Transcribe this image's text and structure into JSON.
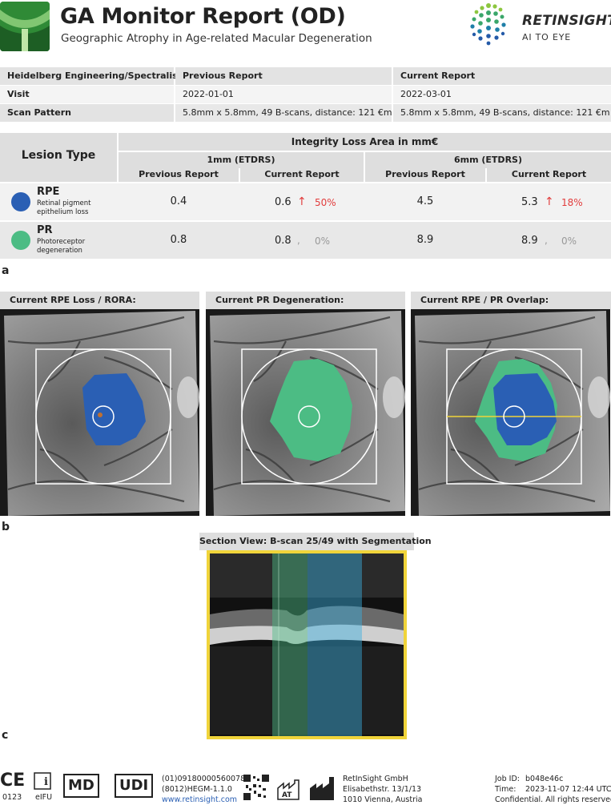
{
  "header": {
    "title": "GA Monitor Report (OD)",
    "subtitle": "Geographic Atrophy in Age-related Macular Degeneration",
    "brand_name": "RETINSIGHT",
    "brand_tagline": "AI TO EYE",
    "brand_colors": [
      "#8cc63f",
      "#3aa66a",
      "#1f7fa8",
      "#245aa8"
    ]
  },
  "info_table": {
    "device": "Heidelberg Engineering/Spectralis",
    "previous_header": "Previous Report",
    "current_header": "Current Report",
    "rows": [
      {
        "label": "Visit",
        "previous": "2022-01-01",
        "current": "2022-03-01"
      },
      {
        "label": "Scan Pattern",
        "previous": "5.8mm x 5.8mm, 49 B-scans, distance: 121 €m",
        "current": "5.8mm x 5.8mm, 49 B-scans, distance: 121 €m"
      }
    ]
  },
  "lesion_table": {
    "lesion_type_header": "Lesion Type",
    "integrity_header": "Integrity Loss Area in mm€",
    "zone_1mm": "1mm (ETDRS)",
    "zone_6mm": "6mm (ETDRS)",
    "previous": "Previous Report",
    "current": "Current Report",
    "rows": [
      {
        "code": "RPE",
        "desc1": "Retinal pigment",
        "desc2": "epithelium loss",
        "color": "#2a5fb4",
        "p1": "0.4",
        "c1": "0.6",
        "ch1": "50%",
        "up1": "↑",
        "p6": "4.5",
        "c6": "5.3",
        "ch6": "18%",
        "up6": "↑"
      },
      {
        "code": "PR",
        "desc1": "Photoreceptor",
        "desc2": "degeneration",
        "color": "#4cbc84",
        "p1": "0.8",
        "c1": "0.8",
        "ch1": "0%",
        "up1": ",",
        "p6": "8.9",
        "c6": "8.9",
        "ch6": "0%",
        "up6": ","
      }
    ],
    "up_color": "#e23c3c"
  },
  "labels": {
    "a": "a",
    "b": "b",
    "c": "c"
  },
  "panels": [
    "Current RPE Loss / RORA:",
    "Current PR Degeneration:",
    "Current RPE / PR Overlap:"
  ],
  "section_view": {
    "title": "Section View: B-scan 25/49 with Segmentation",
    "frame_color": "#f0d43a"
  },
  "footer": {
    "ce_number": "0123",
    "eifu": "eIFU",
    "md": "MD",
    "udi": "UDI",
    "udi_line1": "(01)09180000560078",
    "udi_line2": "(8012)HEGM-1.1.0",
    "url": "www.retinsight.com",
    "at": "AT",
    "company": "RetInSight GmbH",
    "address1": "Elisabethstr. 13/1/13",
    "address2": "1010 Vienna, Austria",
    "job_label": "Job ID:",
    "job_id": "b048e46c",
    "time_label": "Time:",
    "time": "2023-11-07 12:44 UTC",
    "confidential": "Confidential. All rights reserved"
  }
}
